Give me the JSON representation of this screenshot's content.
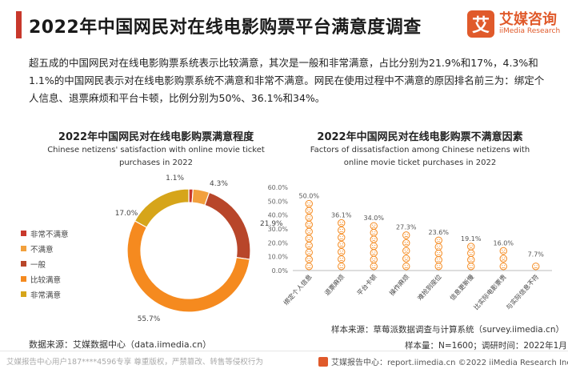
{
  "header": {
    "title": "2022年中国网民对在线电影购票平台满意度调查",
    "logo_mark": "艾",
    "logo_cn": "艾媒咨询",
    "logo_en": "iiMedia Research"
  },
  "intro": "超五成的中国网民对在线电影购票系统表示比较满意，其次是一般和非常满意，占比分别为21.9%和17%，4.3%和1.1%的中国网民表示对在线电影购票系统不满意和非常不满意。网民在使用过程中不满意的原因排名前三为：绑定个人信息、退票麻烦和平台卡顿，比例分别为50%、36.1%和34%。",
  "left_chart_titles": {
    "cn": "2022年中国网民对在线电影购票满意程度",
    "en": "Chinese netizens' satisfaction with online movie ticket purchases in 2022"
  },
  "right_chart_titles": {
    "cn": "2022年中国网民对在线电影购票不满意因素",
    "en": "Factors of dissatisfaction among Chinese netizens with online movie ticket purchases in 2022"
  },
  "chart_data": [
    {
      "type": "pie",
      "title": "2022年中国网民对在线电影购票满意程度",
      "subtitle": "Chinese netizens' satisfaction with online movie ticket purchases in 2022",
      "categories": [
        "非常不满意",
        "不满意",
        "一般",
        "比较满意",
        "非常满意"
      ],
      "values": [
        1.1,
        4.3,
        21.9,
        55.7,
        17.0
      ],
      "data_labels": [
        "1.1%",
        "4.3%",
        "21.9%",
        "55.7%",
        "17.0%"
      ],
      "colors": [
        "#c8382c",
        "#f2a03d",
        "#b8462a",
        "#f58a1f",
        "#d6a51a"
      ],
      "legend": "left",
      "donut": true
    },
    {
      "type": "scatter",
      "marker": "sad-face-icon",
      "title": "2022年中国网民对在线电影购票不满意因素",
      "subtitle": "Factors of dissatisfaction among Chinese netizens with online movie ticket purchases in 2022",
      "categories": [
        "绑定个人信息",
        "退票麻烦",
        "平台卡顿",
        "操作麻烦",
        "难抢到座位",
        "信息更新慢",
        "比实际电影票贵",
        "与实际信息不符"
      ],
      "values": [
        50.0,
        36.1,
        34.0,
        27.3,
        23.6,
        19.1,
        16.0,
        7.7
      ],
      "data_labels": [
        "50.0%",
        "36.1%",
        "34.0%",
        "27.3%",
        "23.6%",
        "19.1%",
        "16.0%",
        "7.7%"
      ],
      "ylim": [
        0,
        60
      ],
      "yticks": [
        "0.0%",
        "10.0%",
        "20.0%",
        "30.0%",
        "40.0%",
        "50.0%",
        "60.0%"
      ],
      "color": "#f58a1f",
      "grid": false
    }
  ],
  "footer": {
    "data_source": "数据来源：艾媒数据中心（data.iimedia.cn）",
    "sample_source": "样本来源：草莓派数据调查与计算系统（survey.iimedia.cn）",
    "sample_size": "样本量：N=1600；调研时间：2022年1月",
    "disclaimer": "艾媒报告中心用户187****4596专享 尊重版权，严禁篡改、转售等侵权行为",
    "right": "艾媒报告中心：report.iimedia.cn  ©2022  iiMedia Research  Inc"
  }
}
